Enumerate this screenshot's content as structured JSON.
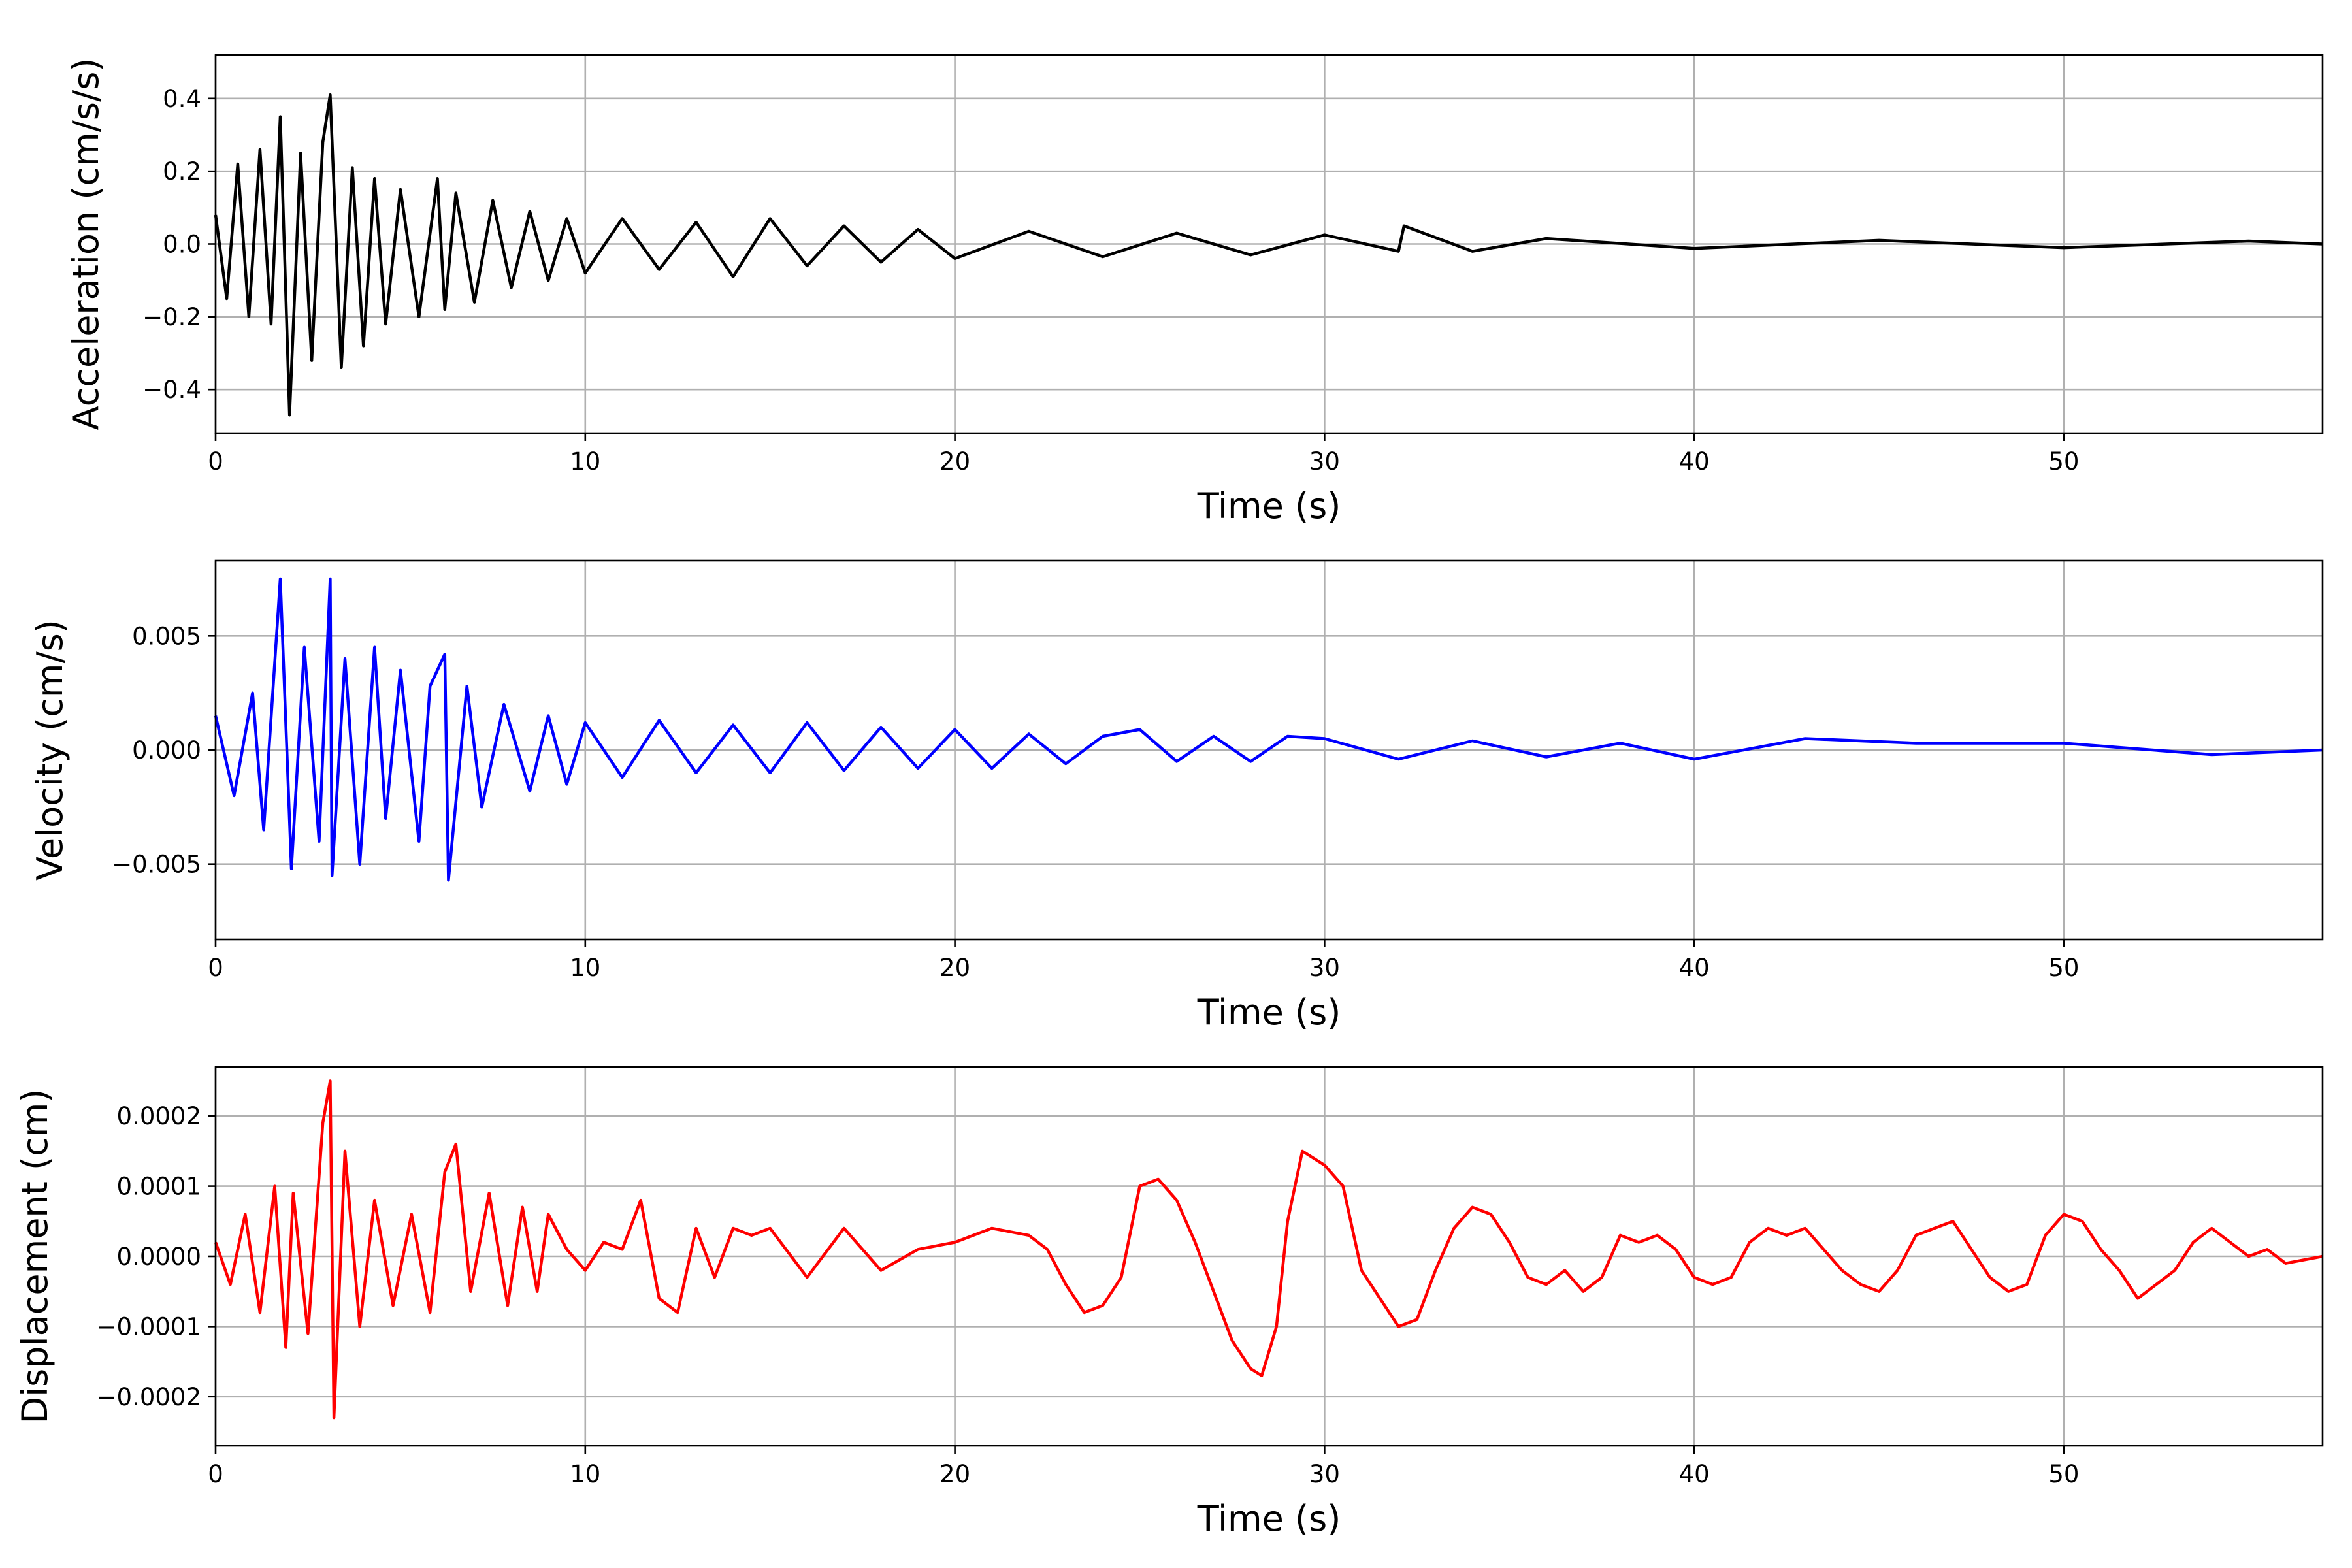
{
  "chart_data": [
    {
      "type": "line",
      "xlabel": "Time (s)",
      "ylabel": "Acceleration (cm/s/s)",
      "xlim": [
        0,
        57
      ],
      "ylim": [
        -0.52,
        0.52
      ],
      "xticks": [
        0,
        10,
        20,
        30,
        40,
        50
      ],
      "xtick_labels": [
        "0",
        "10",
        "20",
        "30",
        "40",
        "50"
      ],
      "yticks": [
        -0.4,
        -0.2,
        0.0,
        0.2,
        0.4
      ],
      "ytick_labels": [
        "−0.4",
        "−0.2",
        "0.0",
        "0.2",
        "0.4"
      ],
      "grid": true,
      "color": "#000000",
      "series": [
        {
          "x": [
            0,
            0.3,
            0.6,
            0.9,
            1.2,
            1.5,
            1.75,
            2.0,
            2.3,
            2.6,
            2.9,
            3.1,
            3.4,
            3.7,
            4.0,
            4.3,
            4.6,
            5.0,
            5.5,
            6.0,
            6.2,
            6.5,
            7.0,
            7.5,
            8.0,
            8.5,
            9.0,
            9.5,
            10.0,
            11.0,
            12.0,
            13.0,
            14.0,
            15.0,
            16.0,
            17.0,
            18.0,
            19.0,
            20.0,
            22.0,
            24.0,
            26.0,
            28.0,
            30.0,
            32.0,
            32.15,
            34.0,
            36.0,
            40.0,
            45.0,
            50.0,
            55.0,
            57.0
          ],
          "y": [
            0.08,
            -0.15,
            0.22,
            -0.2,
            0.26,
            -0.22,
            0.35,
            -0.47,
            0.25,
            -0.32,
            0.28,
            0.41,
            -0.34,
            0.21,
            -0.28,
            0.18,
            -0.22,
            0.15,
            -0.2,
            0.18,
            -0.18,
            0.14,
            -0.16,
            0.12,
            -0.12,
            0.09,
            -0.1,
            0.07,
            -0.08,
            0.07,
            -0.07,
            0.06,
            -0.09,
            0.07,
            -0.06,
            0.05,
            -0.05,
            0.04,
            -0.04,
            0.035,
            -0.035,
            0.03,
            -0.03,
            0.025,
            -0.02,
            0.05,
            -0.02,
            0.015,
            -0.012,
            0.01,
            -0.01,
            0.008,
            0.0
          ]
        }
      ]
    },
    {
      "type": "line",
      "xlabel": "Time (s)",
      "ylabel": "Velocity (cm/s)",
      "xlim": [
        0,
        57
      ],
      "ylim": [
        -0.0083,
        0.0083
      ],
      "xticks": [
        0,
        10,
        20,
        30,
        40,
        50
      ],
      "xtick_labels": [
        "0",
        "10",
        "20",
        "30",
        "40",
        "50"
      ],
      "yticks": [
        -0.005,
        0.0,
        0.005
      ],
      "ytick_labels": [
        "−0.005",
        "0.000",
        "0.005"
      ],
      "grid": true,
      "color": "#0000ff",
      "series": [
        {
          "x": [
            0,
            0.5,
            1.0,
            1.3,
            1.75,
            2.05,
            2.4,
            2.8,
            3.1,
            3.15,
            3.5,
            3.9,
            4.3,
            4.6,
            5.0,
            5.5,
            5.8,
            6.2,
            6.3,
            6.8,
            7.2,
            7.8,
            8.5,
            9.0,
            9.5,
            10.0,
            11.0,
            12.0,
            13.0,
            14.0,
            15.0,
            16.0,
            17.0,
            18.0,
            19.0,
            20.0,
            21.0,
            22.0,
            23.0,
            24.0,
            25.0,
            26.0,
            27.0,
            28.0,
            29.0,
            30.0,
            32.0,
            34.0,
            36.0,
            38.0,
            40.0,
            43.0,
            46.0,
            50.0,
            54.0,
            57.0
          ],
          "y": [
            0.0015,
            -0.002,
            0.0025,
            -0.0035,
            0.0075,
            -0.0052,
            0.0045,
            -0.004,
            0.0075,
            -0.0055,
            0.004,
            -0.005,
            0.0045,
            -0.003,
            0.0035,
            -0.004,
            0.0028,
            0.0042,
            -0.0057,
            0.0028,
            -0.0025,
            0.002,
            -0.0018,
            0.0015,
            -0.0015,
            0.0012,
            -0.0012,
            0.0013,
            -0.001,
            0.0011,
            -0.001,
            0.0012,
            -0.0009,
            0.001,
            -0.0008,
            0.0009,
            -0.0008,
            0.0007,
            -0.0006,
            0.0006,
            0.0009,
            -0.0005,
            0.0006,
            -0.0005,
            0.0006,
            0.0005,
            -0.0004,
            0.0004,
            -0.0003,
            0.0003,
            -0.0004,
            0.0005,
            0.0003,
            0.0003,
            -0.0002,
            0.0
          ]
        }
      ]
    },
    {
      "type": "line",
      "xlabel": "Time (s)",
      "ylabel": "Displacement (cm)",
      "xlim": [
        0,
        57
      ],
      "ylim": [
        -0.00027,
        0.00027
      ],
      "xticks": [
        0,
        10,
        20,
        30,
        40,
        50
      ],
      "xtick_labels": [
        "0",
        "10",
        "20",
        "30",
        "40",
        "50"
      ],
      "yticks": [
        -0.0002,
        -0.0001,
        0.0,
        0.0001,
        0.0002
      ],
      "ytick_labels": [
        "−0.0002",
        "−0.0001",
        "0.0000",
        "0.0001",
        "0.0002"
      ],
      "grid": true,
      "color": "#ff0000",
      "series": [
        {
          "x": [
            0,
            0.4,
            0.8,
            1.2,
            1.6,
            1.9,
            2.1,
            2.5,
            2.9,
            3.1,
            3.2,
            3.5,
            3.9,
            4.3,
            4.8,
            5.3,
            5.8,
            6.2,
            6.5,
            6.9,
            7.4,
            7.9,
            8.3,
            8.7,
            9.0,
            9.5,
            10.0,
            10.5,
            11.0,
            11.5,
            12.0,
            12.5,
            13.0,
            13.5,
            14.0,
            14.5,
            15.0,
            16.0,
            17.0,
            18.0,
            19.0,
            20.0,
            21.0,
            22.0,
            22.5,
            23.0,
            23.5,
            24.0,
            24.5,
            25.0,
            25.5,
            26.0,
            26.5,
            27.0,
            27.5,
            28.0,
            28.3,
            28.7,
            29.0,
            29.4,
            30.0,
            30.5,
            31.0,
            31.5,
            32.0,
            32.5,
            33.0,
            33.5,
            34.0,
            34.5,
            35.0,
            35.5,
            36.0,
            36.5,
            37.0,
            37.5,
            38.0,
            38.5,
            39.0,
            39.5,
            40.0,
            40.5,
            41.0,
            41.5,
            42.0,
            42.5,
            43.0,
            43.5,
            44.0,
            44.5,
            45.0,
            45.5,
            46.0,
            46.5,
            47.0,
            47.5,
            48.0,
            48.5,
            49.0,
            49.5,
            50.0,
            50.5,
            51.0,
            51.5,
            52.0,
            52.5,
            53.0,
            53.5,
            54.0,
            54.5,
            55.0,
            55.5,
            56.0,
            57.0
          ],
          "y": [
            2e-05,
            -4e-05,
            6e-05,
            -8e-05,
            0.0001,
            -0.00013,
            9e-05,
            -0.00011,
            0.00019,
            0.00025,
            -0.00023,
            0.00015,
            -0.0001,
            8e-05,
            -7e-05,
            6e-05,
            -8e-05,
            0.00012,
            0.00016,
            -5e-05,
            9e-05,
            -7e-05,
            7e-05,
            -5e-05,
            6e-05,
            1e-05,
            -2e-05,
            2e-05,
            1e-05,
            8e-05,
            -6e-05,
            -8e-05,
            4e-05,
            -3e-05,
            4e-05,
            3e-05,
            4e-05,
            -3e-05,
            4e-05,
            -2e-05,
            1e-05,
            2e-05,
            4e-05,
            3e-05,
            1e-05,
            -4e-05,
            -8e-05,
            -7e-05,
            -3e-05,
            0.0001,
            0.00011,
            8e-05,
            2e-05,
            -5e-05,
            -0.00012,
            -0.00016,
            -0.00017,
            -0.0001,
            5e-05,
            0.00015,
            0.00013,
            0.0001,
            -2e-05,
            -6e-05,
            -0.0001,
            -9e-05,
            -2e-05,
            4e-05,
            7e-05,
            6e-05,
            2e-05,
            -3e-05,
            -4e-05,
            -2e-05,
            -5e-05,
            -3e-05,
            3e-05,
            2e-05,
            3e-05,
            1e-05,
            -3e-05,
            -4e-05,
            -3e-05,
            2e-05,
            4e-05,
            3e-05,
            4e-05,
            1e-05,
            -2e-05,
            -4e-05,
            -5e-05,
            -2e-05,
            3e-05,
            4e-05,
            5e-05,
            1e-05,
            -3e-05,
            -5e-05,
            -4e-05,
            3e-05,
            6e-05,
            5e-05,
            1e-05,
            -2e-05,
            -6e-05,
            -4e-05,
            -2e-05,
            2e-05,
            4e-05,
            2e-05,
            0.0,
            1e-05,
            -1e-05,
            0.0
          ]
        }
      ]
    }
  ]
}
